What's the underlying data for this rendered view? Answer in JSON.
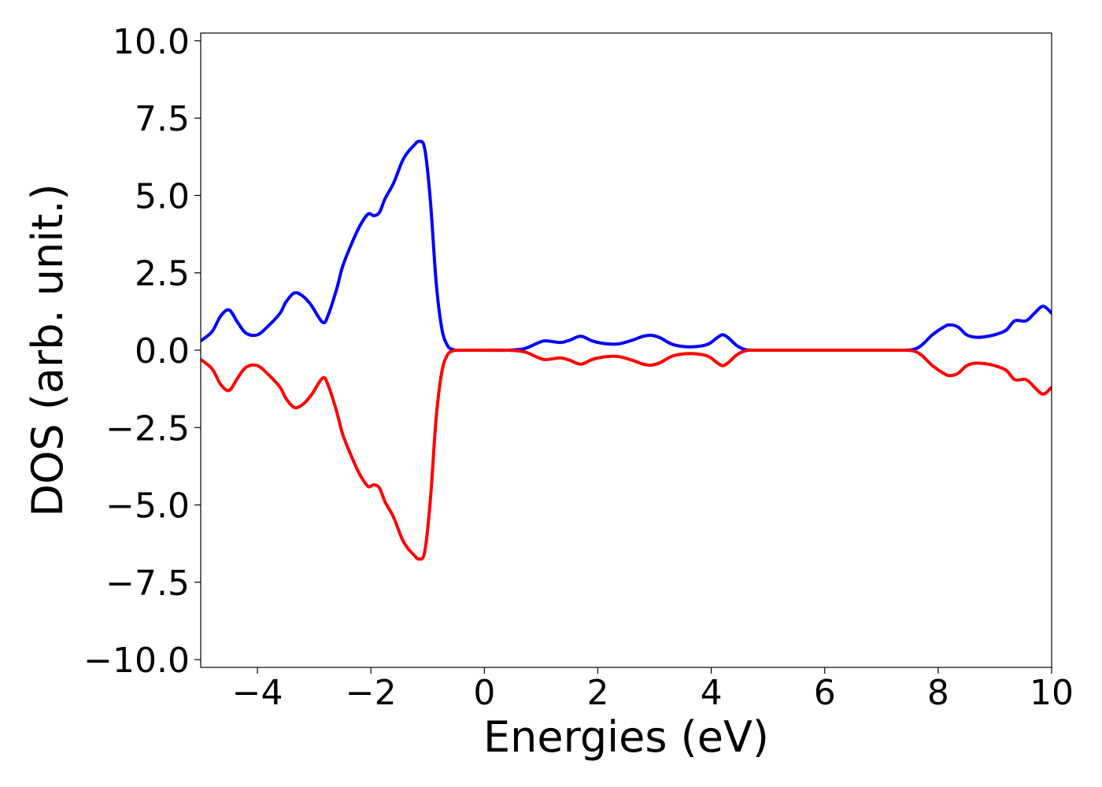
{
  "chart_data": {
    "type": "line",
    "title": "",
    "xlabel": "Energies (eV)",
    "ylabel": "DOS (arb. unit.)",
    "xlim": [
      -5,
      10
    ],
    "ylim": [
      -10.25,
      10.25
    ],
    "grid": false,
    "legend": "none",
    "x_ticks": [
      -4,
      -2,
      0,
      2,
      4,
      6,
      8,
      10
    ],
    "x_tick_labels": [
      "−4",
      "−2",
      "0",
      "2",
      "4",
      "6",
      "8",
      "10"
    ],
    "y_ticks": [
      10.0,
      7.5,
      5.0,
      2.5,
      0.0,
      -2.5,
      -5.0,
      -7.5,
      -10.0
    ],
    "y_tick_labels": [
      "10.0",
      "7.5",
      "5.0",
      "2.5",
      "0.0",
      "−2.5",
      "−5.0",
      "−7.5",
      "−10.0"
    ],
    "series": [
      {
        "color": "#0000ff",
        "x": [
          -5.0,
          -4.8,
          -4.65,
          -4.5,
          -4.35,
          -4.2,
          -4.0,
          -3.8,
          -3.6,
          -3.5,
          -3.35,
          -3.2,
          -3.05,
          -2.85,
          -2.75,
          -2.6,
          -2.5,
          -2.35,
          -2.2,
          -2.05,
          -1.95,
          -1.85,
          -1.75,
          -1.6,
          -1.45,
          -1.35,
          -1.25,
          -1.15,
          -1.05,
          -0.95,
          -0.85,
          -0.75,
          -0.65,
          -0.55,
          -0.45,
          -0.3,
          0.0,
          0.4,
          0.7,
          0.9,
          1.05,
          1.2,
          1.35,
          1.5,
          1.7,
          1.9,
          2.1,
          2.35,
          2.6,
          2.8,
          2.95,
          3.1,
          3.3,
          3.5,
          3.75,
          3.95,
          4.1,
          4.2,
          4.3,
          4.45,
          4.6,
          4.8,
          5.5,
          6.5,
          7.3,
          7.55,
          7.7,
          7.9,
          8.1,
          8.2,
          8.35,
          8.5,
          8.65,
          8.8,
          9.0,
          9.2,
          9.35,
          9.55,
          9.7,
          9.85,
          10.0
        ],
        "values": [
          0.3,
          0.6,
          1.1,
          1.3,
          0.9,
          0.55,
          0.5,
          0.8,
          1.2,
          1.55,
          1.85,
          1.75,
          1.45,
          0.9,
          1.15,
          2.0,
          2.7,
          3.4,
          4.0,
          4.4,
          4.35,
          4.45,
          4.9,
          5.4,
          6.1,
          6.4,
          6.6,
          6.75,
          6.5,
          4.8,
          2.2,
          0.7,
          0.15,
          0.02,
          0.0,
          0.0,
          0.0,
          0.0,
          0.05,
          0.2,
          0.3,
          0.28,
          0.25,
          0.32,
          0.45,
          0.3,
          0.22,
          0.2,
          0.32,
          0.45,
          0.48,
          0.4,
          0.2,
          0.12,
          0.12,
          0.2,
          0.4,
          0.5,
          0.4,
          0.15,
          0.02,
          0.0,
          0.0,
          0.0,
          0.0,
          0.02,
          0.15,
          0.5,
          0.75,
          0.82,
          0.75,
          0.5,
          0.42,
          0.43,
          0.5,
          0.65,
          0.95,
          0.95,
          1.2,
          1.42,
          1.2
        ]
      },
      {
        "color": "#ff0000",
        "x": [
          -5.0,
          -4.8,
          -4.65,
          -4.5,
          -4.35,
          -4.2,
          -4.0,
          -3.8,
          -3.6,
          -3.5,
          -3.35,
          -3.2,
          -3.05,
          -2.85,
          -2.75,
          -2.6,
          -2.5,
          -2.35,
          -2.2,
          -2.05,
          -1.95,
          -1.85,
          -1.75,
          -1.6,
          -1.45,
          -1.35,
          -1.25,
          -1.15,
          -1.05,
          -0.95,
          -0.85,
          -0.75,
          -0.65,
          -0.55,
          -0.45,
          -0.3,
          0.0,
          0.4,
          0.7,
          0.9,
          1.05,
          1.2,
          1.35,
          1.5,
          1.7,
          1.9,
          2.1,
          2.35,
          2.6,
          2.8,
          2.95,
          3.1,
          3.3,
          3.5,
          3.75,
          3.95,
          4.1,
          4.2,
          4.3,
          4.45,
          4.6,
          4.8,
          5.5,
          6.5,
          7.3,
          7.55,
          7.7,
          7.9,
          8.1,
          8.2,
          8.35,
          8.5,
          8.65,
          8.8,
          9.0,
          9.2,
          9.35,
          9.55,
          9.7,
          9.85,
          10.0
        ],
        "values": [
          -0.3,
          -0.6,
          -1.1,
          -1.3,
          -0.9,
          -0.55,
          -0.5,
          -0.8,
          -1.2,
          -1.55,
          -1.85,
          -1.75,
          -1.45,
          -0.9,
          -1.15,
          -2.0,
          -2.7,
          -3.4,
          -4.0,
          -4.4,
          -4.35,
          -4.45,
          -4.9,
          -5.4,
          -6.1,
          -6.4,
          -6.6,
          -6.75,
          -6.5,
          -4.8,
          -2.2,
          -0.7,
          -0.15,
          -0.02,
          0.0,
          0.0,
          0.0,
          0.0,
          -0.05,
          -0.2,
          -0.3,
          -0.28,
          -0.25,
          -0.32,
          -0.45,
          -0.3,
          -0.22,
          -0.2,
          -0.32,
          -0.45,
          -0.48,
          -0.4,
          -0.2,
          -0.12,
          -0.12,
          -0.2,
          -0.4,
          -0.5,
          -0.4,
          -0.15,
          -0.02,
          0.0,
          0.0,
          0.0,
          0.0,
          -0.02,
          -0.15,
          -0.5,
          -0.75,
          -0.82,
          -0.75,
          -0.5,
          -0.42,
          -0.43,
          -0.5,
          -0.65,
          -0.95,
          -0.95,
          -1.2,
          -1.42,
          -1.2
        ]
      }
    ]
  }
}
